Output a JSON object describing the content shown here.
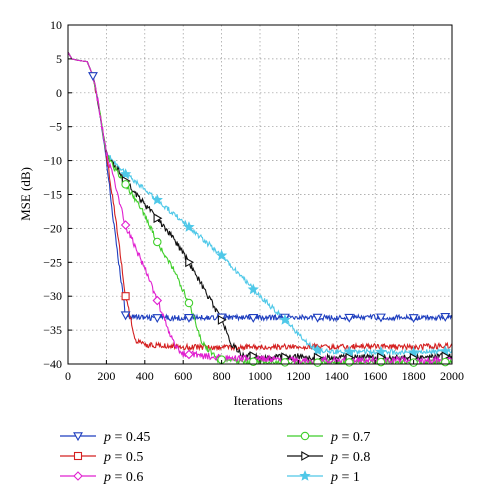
{
  "chart_data": {
    "type": "line",
    "title": "",
    "xlabel": "Iterations",
    "ylabel": "MSE (dB)",
    "xlim": [
      0,
      2000
    ],
    "ylim": [
      -40,
      10
    ],
    "xticks": [
      0,
      200,
      400,
      600,
      800,
      1000,
      1200,
      1400,
      1600,
      1800,
      2000
    ],
    "yticks": [
      10,
      5,
      0,
      -5,
      -10,
      -15,
      -20,
      -25,
      -30,
      -35,
      -40
    ],
    "grid": true,
    "legend_position": "bottom",
    "series": [
      {
        "name": "p = 0.45",
        "param": "p",
        "value_text": "0.45",
        "color": "#1f3fbf",
        "marker": "triangle-down",
        "x": [
          0,
          20,
          50,
          100,
          130,
          160,
          200,
          250,
          300,
          400,
          600,
          800,
          1000,
          1200,
          1400,
          1600,
          1800,
          2000
        ],
        "y": [
          6,
          5,
          4.8,
          4.6,
          2.5,
          -2,
          -10,
          -22,
          -32.8,
          -33.2,
          -33.2,
          -33.1,
          -33.2,
          -33.1,
          -33.2,
          -33.1,
          -33.2,
          -33.0
        ],
        "markers_x": [
          130,
          300,
          465,
          630,
          800,
          965,
          1130,
          1300,
          1465,
          1630,
          1800,
          1965
        ],
        "noise": 0.4
      },
      {
        "name": "p = 0.5",
        "param": "p",
        "value_text": "0.5",
        "color": "#d42020",
        "marker": "square",
        "x": [
          0,
          20,
          50,
          100,
          130,
          160,
          200,
          250,
          300,
          350,
          400,
          600,
          800,
          1000,
          1200,
          1400,
          1600,
          1800,
          2000
        ],
        "y": [
          6,
          5,
          4.8,
          4.6,
          2.5,
          -2,
          -9,
          -19,
          -30,
          -36.5,
          -37.2,
          -37.5,
          -37.5,
          -37.5,
          -37.4,
          -37.5,
          -37.4,
          -37.5,
          -37.3
        ],
        "markers_x": [
          300
        ],
        "noise": 0.4
      },
      {
        "name": "p = 0.6",
        "param": "p",
        "value_text": "0.6",
        "color": "#e020d0",
        "marker": "diamond",
        "x": [
          0,
          20,
          50,
          100,
          130,
          160,
          200,
          250,
          300,
          400,
          470,
          550,
          600,
          700,
          800,
          1000,
          1200,
          1400,
          1600,
          1800,
          2000
        ],
        "y": [
          6,
          5,
          4.8,
          4.6,
          2.5,
          -2,
          -9,
          -14,
          -19.5,
          -26,
          -31,
          -37,
          -38.5,
          -38.8,
          -39,
          -39.2,
          -39.5,
          -39.4,
          -39.3,
          -39.5,
          -39.3
        ],
        "markers_x": [
          300,
          465,
          630
        ],
        "noise": 0.5
      },
      {
        "name": "p = 0.7",
        "param": "p",
        "value_text": "0.7",
        "color": "#3fce2a",
        "marker": "circle",
        "x": [
          0,
          20,
          50,
          100,
          130,
          160,
          200,
          250,
          300,
          400,
          465,
          550,
          630,
          700,
          780,
          900,
          1000,
          1200,
          1400,
          1600,
          1800,
          2000
        ],
        "y": [
          6,
          5,
          4.8,
          4.6,
          2.5,
          -2,
          -9,
          -11.5,
          -13.5,
          -18,
          -22,
          -26,
          -31,
          -37,
          -39.3,
          -39.6,
          -39.7,
          -39.8,
          -39.8,
          -39.7,
          -39.8,
          -39.7
        ],
        "markers_x": [
          300,
          465,
          630,
          800,
          965,
          1130,
          1300,
          1465,
          1630,
          1800,
          1965
        ],
        "noise": 0.4
      },
      {
        "name": "p = 0.8",
        "param": "p",
        "value_text": "0.8",
        "color": "#111111",
        "marker": "triangle-right",
        "x": [
          0,
          20,
          50,
          100,
          130,
          160,
          200,
          250,
          300,
          400,
          465,
          550,
          630,
          700,
          800,
          850,
          900,
          1000,
          1200,
          1400,
          1600,
          1800,
          2000
        ],
        "y": [
          6,
          5,
          4.8,
          4.6,
          2.5,
          -2,
          -9,
          -11,
          -13,
          -16.5,
          -18.5,
          -21.5,
          -25,
          -28.5,
          -33.5,
          -37,
          -38.5,
          -39,
          -39,
          -39.1,
          -39,
          -39.1,
          -38.8
        ],
        "markers_x": [
          300,
          465,
          630,
          800,
          965,
          1130,
          1300,
          1465,
          1630,
          1800,
          1965
        ],
        "noise": 0.45
      },
      {
        "name": "p = 1",
        "param": "p",
        "value_text": "1",
        "color": "#4fc8e8",
        "marker": "star",
        "x": [
          0,
          20,
          50,
          100,
          130,
          160,
          200,
          300,
          465,
          630,
          800,
          965,
          1130,
          1250,
          1300,
          1400,
          1600,
          1800,
          2000
        ],
        "y": [
          6,
          5,
          4.8,
          4.6,
          2.5,
          -2,
          -9,
          -12,
          -15.8,
          -19.8,
          -24,
          -29,
          -33.5,
          -37,
          -38,
          -38.2,
          -38.2,
          -38.3,
          -38.1
        ],
        "markers_x": [
          300,
          465,
          630,
          800,
          965,
          1130,
          1300,
          1465,
          1630,
          1800,
          1965
        ],
        "noise": 0.4
      }
    ]
  }
}
